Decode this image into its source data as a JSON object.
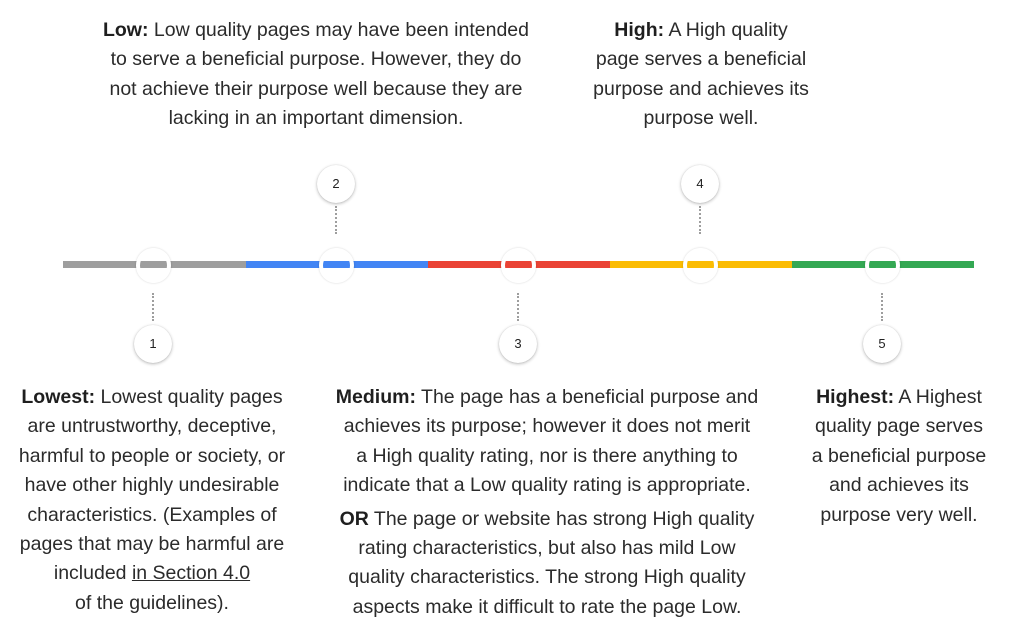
{
  "levels": [
    {
      "number": "1",
      "title": "Lowest:",
      "lines": [
        " Lowest quality pages",
        "are untrustworthy, deceptive,",
        "harmful to people or society, or",
        "have other highly undesirable",
        "characteristics. (Examples of",
        "pages that may be harmful are",
        "included "
      ],
      "link_text": "in Section 4.0",
      "last_line": "of the guidelines).",
      "color": "#9e9e9e"
    },
    {
      "number": "2",
      "title": "Low:",
      "lines": [
        " Low quality pages may have been intended",
        "to serve a beneficial purpose. However, they do",
        "not achieve their purpose well because they are",
        "lacking in an important dimension."
      ],
      "color": "#4285f4"
    },
    {
      "number": "3",
      "title": "Medium:",
      "lines": [
        " The page has a beneficial purpose and",
        "achieves its purpose; however it does not merit",
        "a High quality rating, nor is there anything to",
        "indicate that a Low quality rating is appropriate."
      ],
      "alt_title": "OR",
      "alt_lines": [
        " The page or website has strong High quality",
        "rating characteristics, but also has mild Low",
        "quality characteristics. The strong High quality",
        "aspects make it difficult to rate the page Low."
      ],
      "color": "#ea4335"
    },
    {
      "number": "4",
      "title": "High:",
      "lines": [
        " A High quality",
        "page serves a beneficial",
        "purpose and achieves its",
        "purpose well."
      ],
      "color": "#fbbc04"
    },
    {
      "number": "5",
      "title": "Highest:",
      "lines": [
        "  A Highest",
        "quality page serves",
        "a beneficial purpose",
        "and achieves its",
        "purpose very well."
      ],
      "color": "#34a853"
    }
  ]
}
